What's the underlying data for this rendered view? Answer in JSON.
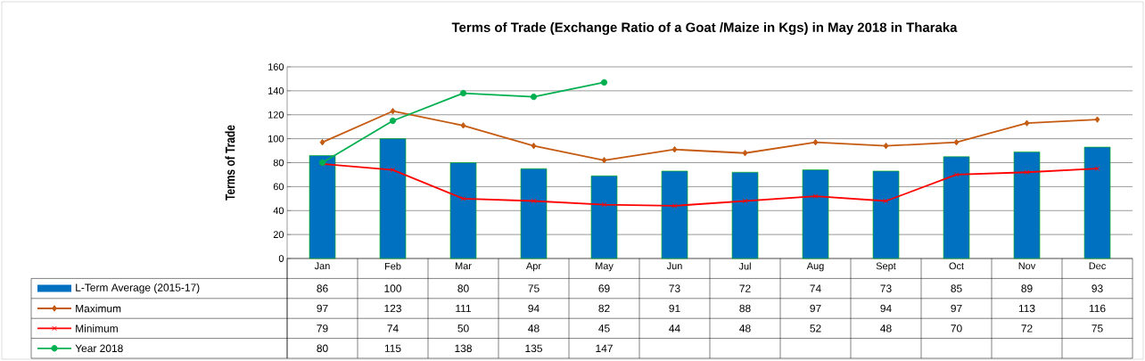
{
  "chart_data": {
    "type": "bar",
    "title": "Terms of Trade (Exchange Ratio of a Goat /Maize in Kgs) in May 2018 in Tharaka",
    "ylabel": "Terms of Trade",
    "categories": [
      "Jan",
      "Feb",
      "Mar",
      "Apr",
      "May",
      "Jun",
      "Jul",
      "Aug",
      "Sept",
      "Oct",
      "Nov",
      "Dec"
    ],
    "series": [
      {
        "name": "L-Term Average (2015-17)",
        "color": "#0070c0",
        "values": [
          86,
          100,
          80,
          75,
          69,
          73,
          72,
          74,
          73,
          85,
          89,
          93
        ]
      },
      {
        "name": "Maximum",
        "type": "line",
        "color": "#c55a11",
        "marker": "diamond",
        "values": [
          97,
          123,
          111,
          94,
          82,
          91,
          88,
          97,
          94,
          97,
          113,
          116
        ]
      },
      {
        "name": "Minimum",
        "type": "line",
        "color": "#ff0000",
        "marker": "cross",
        "values": [
          79,
          74,
          50,
          48,
          45,
          44,
          48,
          52,
          48,
          70,
          72,
          75
        ]
      },
      {
        "name": "Year 2018",
        "type": "line",
        "color": "#00b050",
        "marker": "circle",
        "values": [
          80,
          115,
          138,
          135,
          147,
          null,
          null,
          null,
          null,
          null,
          null,
          null
        ]
      }
    ],
    "ylim": [
      0,
      160
    ],
    "yticks": [
      0,
      20,
      40,
      60,
      80,
      100,
      120,
      140,
      160
    ],
    "grid": "y",
    "legend": "bottom left",
    "data_labels": true
  }
}
